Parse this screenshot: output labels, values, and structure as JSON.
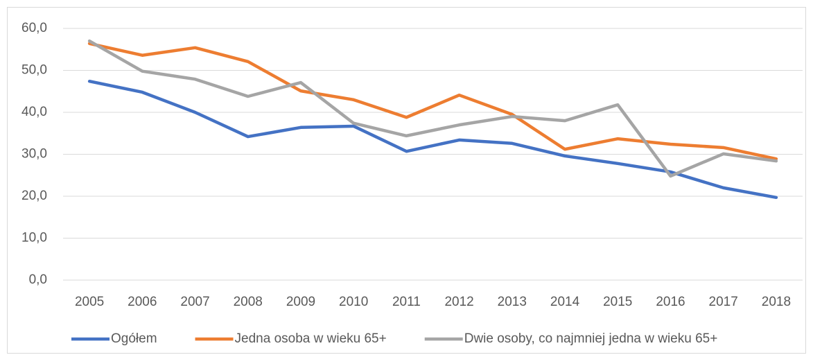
{
  "chart_data": {
    "type": "line",
    "categories": [
      "2005",
      "2006",
      "2007",
      "2008",
      "2009",
      "2010",
      "2011",
      "2012",
      "2013",
      "2014",
      "2015",
      "2016",
      "2017",
      "2018"
    ],
    "series": [
      {
        "name": "Ogółem",
        "color": "#4472c4",
        "values": [
          47.4,
          44.8,
          40.0,
          34.2,
          36.4,
          36.7,
          30.7,
          33.4,
          32.6,
          29.6,
          27.8,
          25.8,
          22.0,
          19.7
        ]
      },
      {
        "name": "Jedna osoba w wieku 65+",
        "color": "#ed7d31",
        "values": [
          56.4,
          53.6,
          55.4,
          52.1,
          45.1,
          43.0,
          38.8,
          44.1,
          39.5,
          31.2,
          33.7,
          32.4,
          31.6,
          28.9
        ]
      },
      {
        "name": "Dwie osoby, co najmniej jedna w wieku 65+",
        "color": "#a5a5a5",
        "values": [
          57.0,
          49.8,
          47.9,
          43.8,
          47.1,
          37.4,
          34.4,
          37.0,
          39.0,
          38.0,
          41.8,
          24.8,
          30.1,
          28.4
        ]
      }
    ],
    "ylim": [
      0,
      60
    ],
    "yticks": [
      {
        "value": 0,
        "label": "0,0"
      },
      {
        "value": 10,
        "label": "10,0"
      },
      {
        "value": 20,
        "label": "20,0"
      },
      {
        "value": 30,
        "label": "30,0"
      },
      {
        "value": 40,
        "label": "40,0"
      },
      {
        "value": 50,
        "label": "50,0"
      },
      {
        "value": 60,
        "label": "60,0"
      }
    ],
    "grid": true,
    "legend": "bottom"
  }
}
